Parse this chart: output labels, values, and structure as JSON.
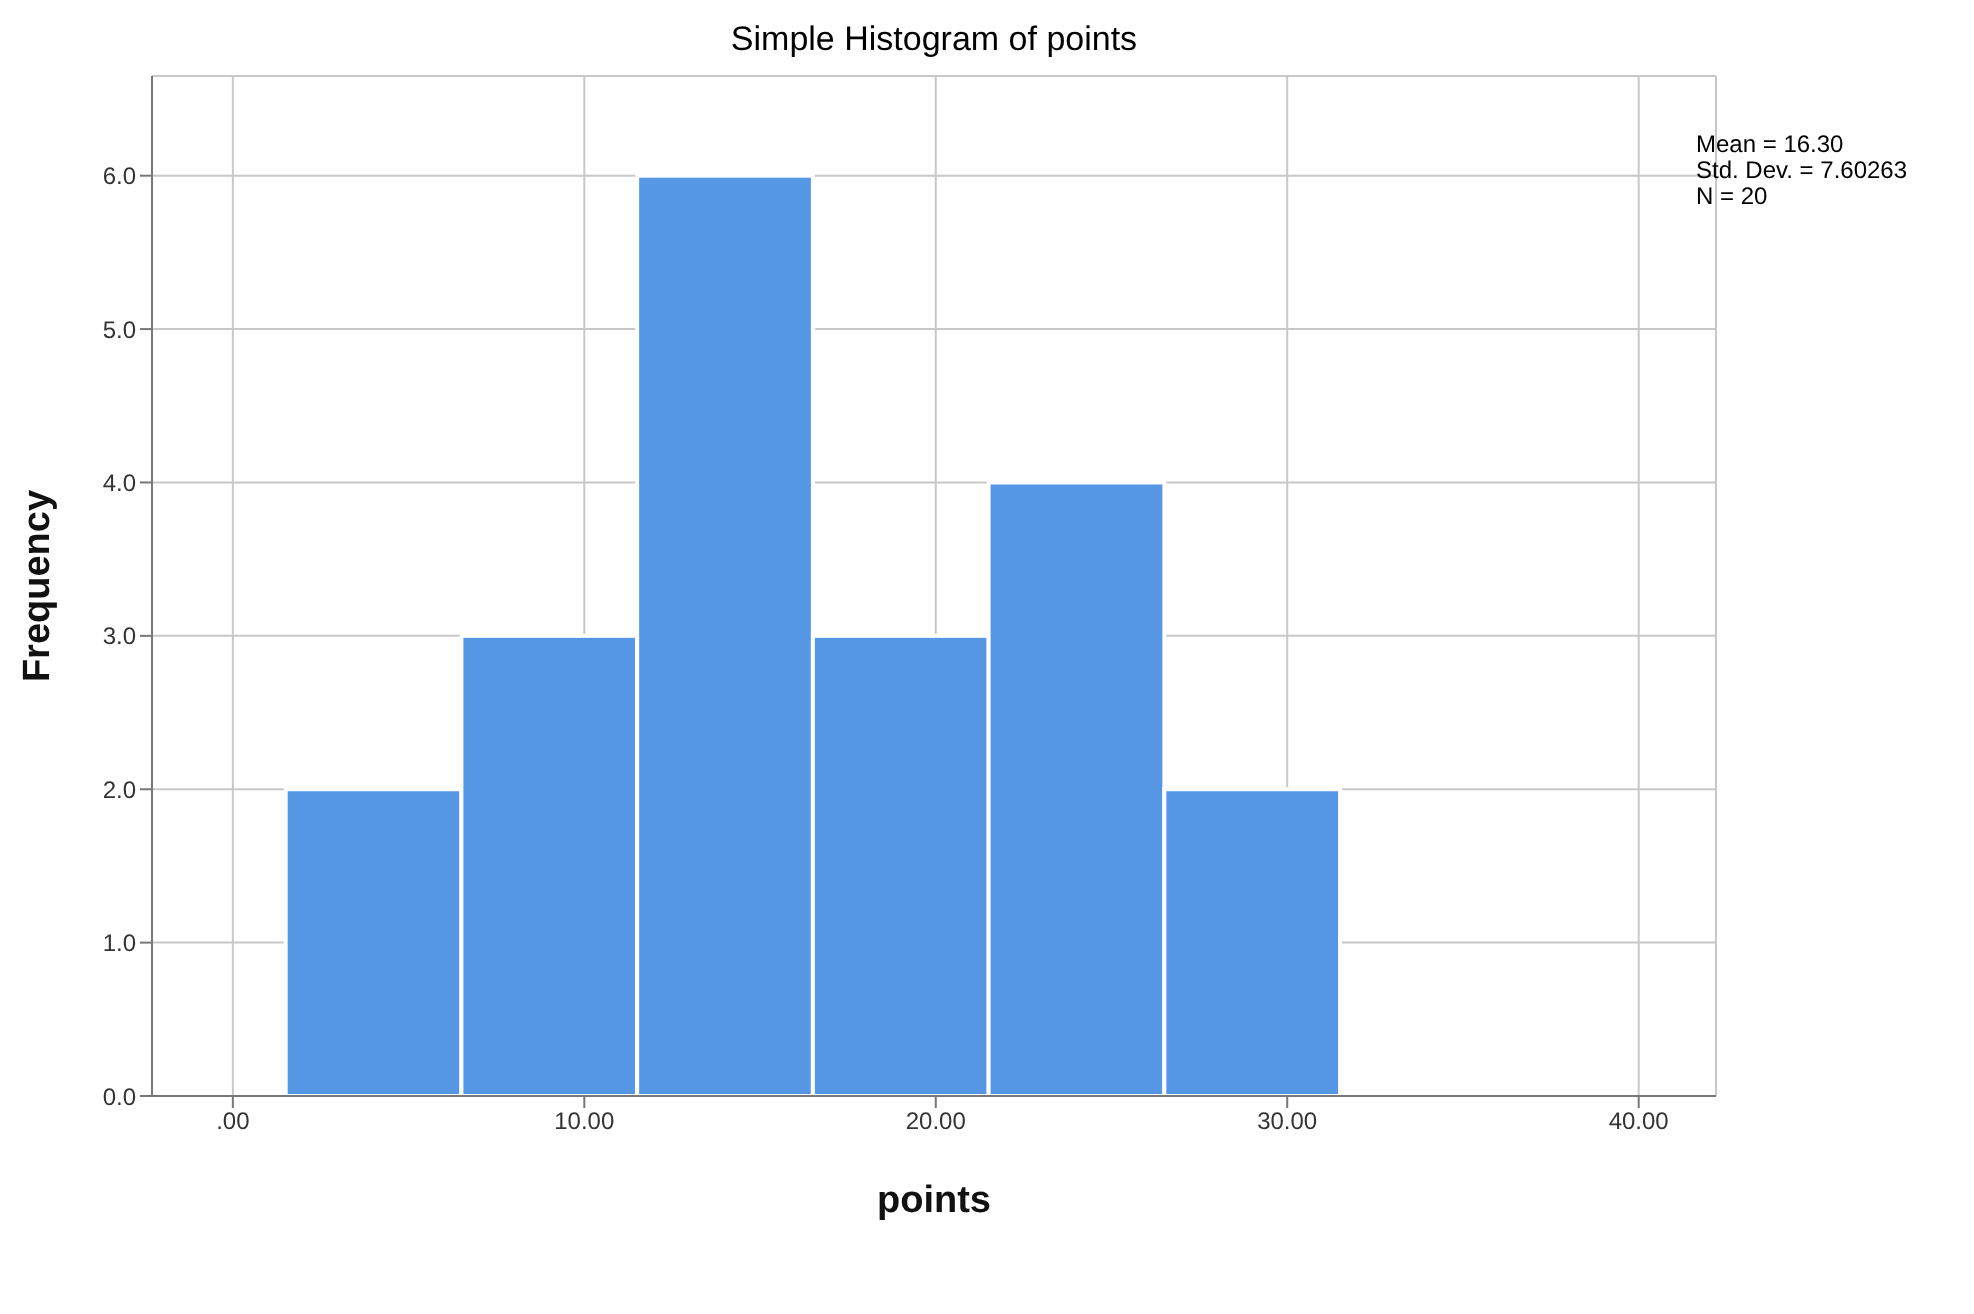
{
  "chart_data": {
    "type": "histogram",
    "title": "Simple Histogram of points",
    "xlabel": "points",
    "ylabel": "Frequency",
    "bins": [
      1.5,
      6.5,
      11.5,
      16.5,
      21.5,
      26.5,
      31.5
    ],
    "values": [
      2,
      3,
      6,
      3,
      4,
      2
    ],
    "color": "#5597e5",
    "xlim": [
      -2.3,
      42.2
    ],
    "xticks": [
      {
        "value": 0,
        "label": ".00"
      },
      {
        "value": 10,
        "label": "10.00"
      },
      {
        "value": 20,
        "label": "20.00"
      },
      {
        "value": 30,
        "label": "30.00"
      },
      {
        "value": 40,
        "label": "40.00"
      }
    ],
    "ylim": [
      0,
      6.65
    ],
    "yticks": [
      {
        "value": 0,
        "label": "0.0"
      },
      {
        "value": 1,
        "label": "1.0"
      },
      {
        "value": 2,
        "label": "2.0"
      },
      {
        "value": 3,
        "label": "3.0"
      },
      {
        "value": 4,
        "label": "4.0"
      },
      {
        "value": 5,
        "label": "5.0"
      },
      {
        "value": 6,
        "label": "6.0"
      }
    ],
    "grid": true,
    "annotations": [
      "Mean = 16.30",
      "Std. Dev. = 7.60263",
      "N = 20"
    ]
  }
}
